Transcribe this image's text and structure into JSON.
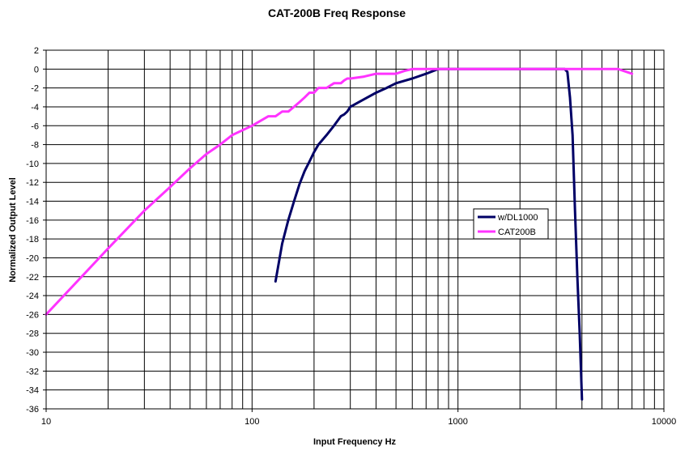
{
  "chart_data": {
    "type": "line",
    "title": "CAT-200B Freq Response",
    "xlabel": "Input Frequency Hz",
    "ylabel": "Normalized Output Level",
    "x_scale": "log",
    "xlim": [
      10,
      10000
    ],
    "ylim": [
      -36,
      2
    ],
    "x_tick_labels": [
      "10",
      "100",
      "1000",
      "10000"
    ],
    "y_ticks": [
      2,
      0,
      -2,
      -4,
      -6,
      -8,
      -10,
      -12,
      -14,
      -16,
      -18,
      -20,
      -22,
      -24,
      -26,
      -28,
      -30,
      -32,
      -34,
      -36
    ],
    "grid": true,
    "legend_position": "center-right",
    "series": [
      {
        "name": "w/DL1000",
        "color": "#000066",
        "points": [
          [
            130,
            -22.5
          ],
          [
            140,
            -18.5
          ],
          [
            150,
            -16
          ],
          [
            160,
            -14
          ],
          [
            170,
            -12.2
          ],
          [
            180,
            -10.8
          ],
          [
            190,
            -9.8
          ],
          [
            200,
            -8.8
          ],
          [
            210,
            -8
          ],
          [
            230,
            -7
          ],
          [
            250,
            -6
          ],
          [
            270,
            -5
          ],
          [
            280,
            -4.8
          ],
          [
            290,
            -4.5
          ],
          [
            300,
            -4
          ],
          [
            350,
            -3.2
          ],
          [
            400,
            -2.5
          ],
          [
            450,
            -2
          ],
          [
            500,
            -1.5
          ],
          [
            600,
            -1
          ],
          [
            700,
            -0.5
          ],
          [
            800,
            0
          ],
          [
            1000,
            0
          ],
          [
            2000,
            0
          ],
          [
            3000,
            0
          ],
          [
            3300,
            0
          ],
          [
            3400,
            -0.3
          ],
          [
            3500,
            -3
          ],
          [
            3600,
            -7
          ],
          [
            3700,
            -15
          ],
          [
            3800,
            -22
          ],
          [
            3900,
            -28
          ],
          [
            4000,
            -35
          ]
        ]
      },
      {
        "name": "CAT200B",
        "color": "#ff33ff",
        "points": [
          [
            10,
            -26
          ],
          [
            20,
            -19
          ],
          [
            30,
            -15
          ],
          [
            40,
            -12.5
          ],
          [
            50,
            -10.5
          ],
          [
            60,
            -9
          ],
          [
            70,
            -8
          ],
          [
            80,
            -7
          ],
          [
            100,
            -6
          ],
          [
            120,
            -5
          ],
          [
            130,
            -5
          ],
          [
            140,
            -4.5
          ],
          [
            150,
            -4.5
          ],
          [
            160,
            -4
          ],
          [
            170,
            -3.5
          ],
          [
            180,
            -3
          ],
          [
            190,
            -2.5
          ],
          [
            200,
            -2.5
          ],
          [
            210,
            -2
          ],
          [
            230,
            -2
          ],
          [
            250,
            -1.5
          ],
          [
            270,
            -1.5
          ],
          [
            280,
            -1.2
          ],
          [
            290,
            -1
          ],
          [
            300,
            -1
          ],
          [
            350,
            -0.8
          ],
          [
            400,
            -0.5
          ],
          [
            450,
            -0.5
          ],
          [
            500,
            -0.5
          ],
          [
            550,
            -0.2
          ],
          [
            600,
            0
          ],
          [
            700,
            0
          ],
          [
            1000,
            0
          ],
          [
            2000,
            0
          ],
          [
            5000,
            0
          ],
          [
            6000,
            0
          ],
          [
            7000,
            -0.5
          ]
        ]
      }
    ]
  }
}
